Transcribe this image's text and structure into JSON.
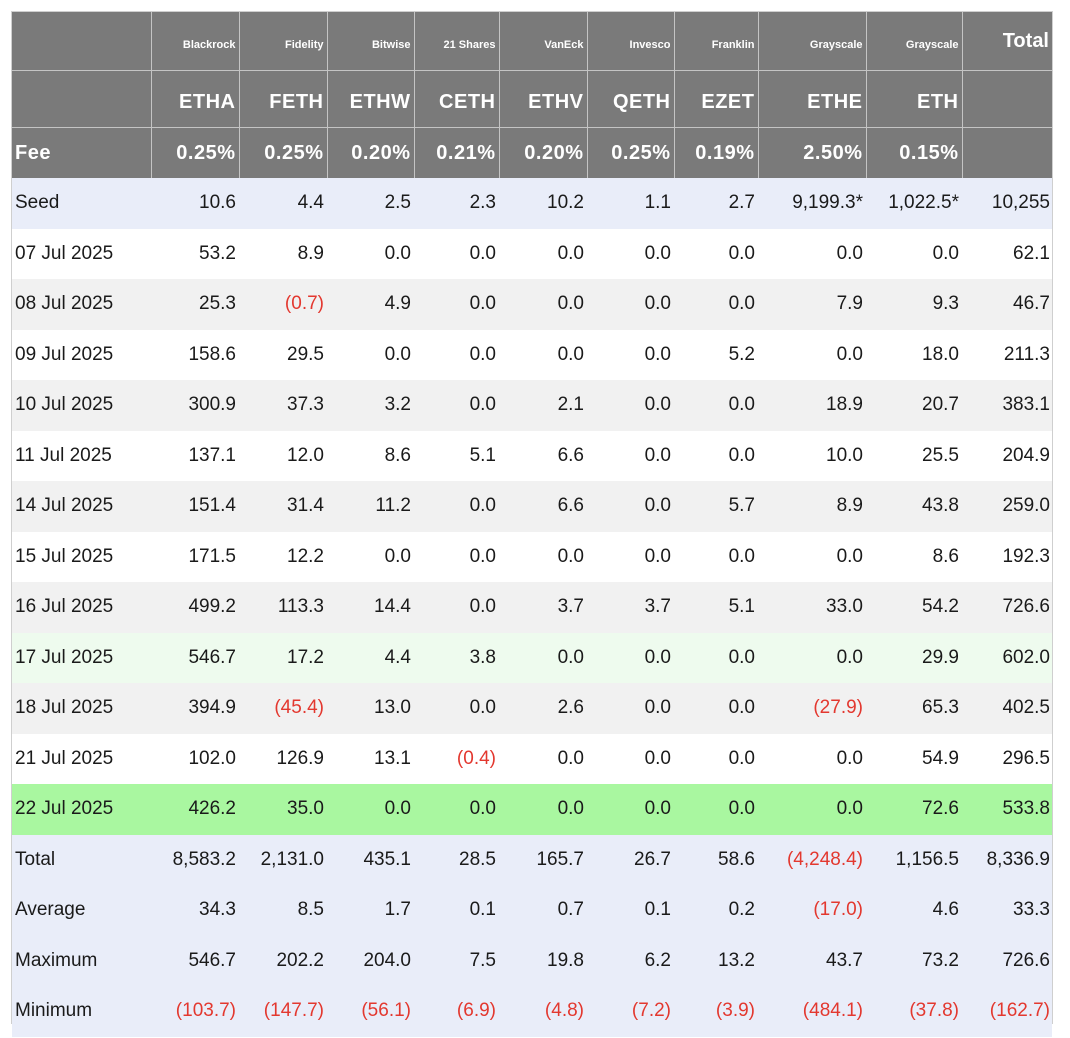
{
  "header": {
    "issuers": [
      "Blackrock",
      "Fidelity",
      "Bitwise",
      "21 Shares",
      "VanEck",
      "Invesco",
      "Franklin",
      "Grayscale",
      "Grayscale"
    ],
    "total_label": "Total",
    "tickers": [
      "ETHA",
      "FETH",
      "ETHW",
      "CETH",
      "ETHV",
      "QETH",
      "EZET",
      "ETHE",
      "ETH"
    ],
    "fee_label": "Fee",
    "fees": [
      "0.25%",
      "0.25%",
      "0.20%",
      "0.21%",
      "0.20%",
      "0.25%",
      "0.19%",
      "2.50%",
      "0.15%"
    ]
  },
  "rows": [
    {
      "label": "Seed",
      "style": "seed",
      "values": [
        "10.6",
        "4.4",
        "2.5",
        "2.3",
        "10.2",
        "1.1",
        "2.7",
        "9,199.3*",
        "1,022.5*",
        "10,255"
      ]
    },
    {
      "label": "07 Jul 2025",
      "style": "white",
      "values": [
        "53.2",
        "8.9",
        "0.0",
        "0.0",
        "0.0",
        "0.0",
        "0.0",
        "0.0",
        "0.0",
        "62.1"
      ]
    },
    {
      "label": "08 Jul 2025",
      "style": "grey",
      "values": [
        "25.3",
        "(0.7)",
        "4.9",
        "0.0",
        "0.0",
        "0.0",
        "0.0",
        "7.9",
        "9.3",
        "46.7"
      ]
    },
    {
      "label": "09 Jul 2025",
      "style": "white",
      "values": [
        "158.6",
        "29.5",
        "0.0",
        "0.0",
        "0.0",
        "0.0",
        "5.2",
        "0.0",
        "18.0",
        "211.3"
      ]
    },
    {
      "label": "10 Jul 2025",
      "style": "grey",
      "values": [
        "300.9",
        "37.3",
        "3.2",
        "0.0",
        "2.1",
        "0.0",
        "0.0",
        "18.9",
        "20.7",
        "383.1"
      ]
    },
    {
      "label": "11 Jul 2025",
      "style": "white",
      "values": [
        "137.1",
        "12.0",
        "8.6",
        "5.1",
        "6.6",
        "0.0",
        "0.0",
        "10.0",
        "25.5",
        "204.9"
      ]
    },
    {
      "label": "14 Jul 2025",
      "style": "grey",
      "values": [
        "151.4",
        "31.4",
        "11.2",
        "0.0",
        "6.6",
        "0.0",
        "5.7",
        "8.9",
        "43.8",
        "259.0"
      ]
    },
    {
      "label": "15 Jul 2025",
      "style": "white",
      "values": [
        "171.5",
        "12.2",
        "0.0",
        "0.0",
        "0.0",
        "0.0",
        "0.0",
        "0.0",
        "8.6",
        "192.3"
      ]
    },
    {
      "label": "16 Jul 2025",
      "style": "grey",
      "values": [
        "499.2",
        "113.3",
        "14.4",
        "0.0",
        "3.7",
        "3.7",
        "5.1",
        "33.0",
        "54.2",
        "726.6"
      ]
    },
    {
      "label": "17 Jul 2025",
      "style": "lightgreen",
      "values": [
        "546.7",
        "17.2",
        "4.4",
        "3.8",
        "0.0",
        "0.0",
        "0.0",
        "0.0",
        "29.9",
        "602.0"
      ]
    },
    {
      "label": "18 Jul 2025",
      "style": "grey",
      "values": [
        "394.9",
        "(45.4)",
        "13.0",
        "0.0",
        "2.6",
        "0.0",
        "0.0",
        "(27.9)",
        "65.3",
        "402.5"
      ]
    },
    {
      "label": "21 Jul 2025",
      "style": "white",
      "values": [
        "102.0",
        "126.9",
        "13.1",
        "(0.4)",
        "0.0",
        "0.0",
        "0.0",
        "0.0",
        "54.9",
        "296.5"
      ]
    },
    {
      "label": "22 Jul 2025",
      "style": "green",
      "values": [
        "426.2",
        "35.0",
        "0.0",
        "0.0",
        "0.0",
        "0.0",
        "0.0",
        "0.0",
        "72.6",
        "533.8"
      ]
    },
    {
      "label": "Total",
      "style": "summary",
      "values": [
        "8,583.2",
        "2,131.0",
        "435.1",
        "28.5",
        "165.7",
        "26.7",
        "58.6",
        "(4,248.4)",
        "1,156.5",
        "8,336.9"
      ]
    },
    {
      "label": "Average",
      "style": "summary",
      "values": [
        "34.3",
        "8.5",
        "1.7",
        "0.1",
        "0.7",
        "0.1",
        "0.2",
        "(17.0)",
        "4.6",
        "33.3"
      ]
    },
    {
      "label": "Maximum",
      "style": "summary",
      "values": [
        "546.7",
        "202.2",
        "204.0",
        "7.5",
        "19.8",
        "6.2",
        "13.2",
        "43.7",
        "73.2",
        "726.6"
      ]
    },
    {
      "label": "Minimum",
      "style": "summary",
      "values": [
        "(103.7)",
        "(147.7)",
        "(56.1)",
        "(6.9)",
        "(4.8)",
        "(7.2)",
        "(3.9)",
        "(484.1)",
        "(37.8)",
        "(162.7)"
      ]
    }
  ],
  "colors": {
    "header_bg": "#7a7a7a",
    "negative": "#e3382f",
    "seed_summary_bg": "#e9edf9",
    "alt_row_bg": "#f1f1f1",
    "highlight_light_green": "#eefbee",
    "highlight_green": "#a9f7a0"
  }
}
